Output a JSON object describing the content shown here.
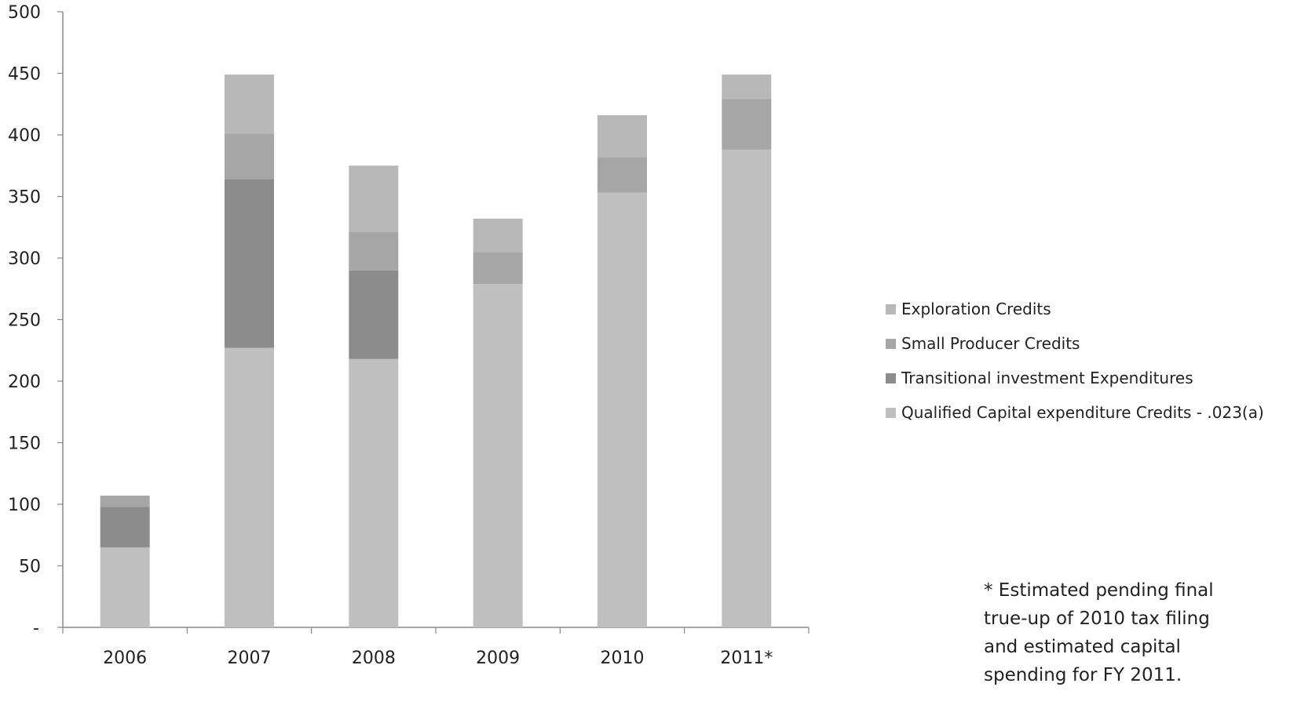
{
  "chart_data": {
    "type": "bar",
    "stacked": true,
    "categories": [
      "2006",
      "2007",
      "2008",
      "2009",
      "2010",
      "2011*"
    ],
    "series": [
      {
        "name": "Qualified Capital expenditure Credits - .023(a)",
        "color": "#bfbfbf",
        "values": [
          65,
          227,
          218,
          279,
          353,
          388
        ]
      },
      {
        "name": "Transitional investment Expenditures",
        "color": "#8c8c8c",
        "values": [
          33,
          137,
          72,
          0,
          0,
          0
        ]
      },
      {
        "name": "Small Producer Credits",
        "color": "#a6a6a6",
        "values": [
          9,
          37,
          31,
          26,
          29,
          41
        ]
      },
      {
        "name": "Exploration Credits",
        "color": "#b8b8b8",
        "values": [
          0,
          48,
          54,
          27,
          34,
          20
        ]
      }
    ],
    "y_ticks": [
      "-",
      "50",
      "100",
      "150",
      "200",
      "250",
      "300",
      "350",
      "400",
      "450",
      "500"
    ],
    "ylim": [
      0,
      500
    ],
    "grid": false,
    "legend_position": "right"
  },
  "legend_order": [
    {
      "label": "Exploration Credits",
      "color": "#b8b8b8"
    },
    {
      "label": "Small Producer Credits",
      "color": "#a6a6a6"
    },
    {
      "label": "Transitional investment Expenditures",
      "color": "#8c8c8c"
    },
    {
      "label": "Qualified Capital expenditure Credits - .023(a)",
      "color": "#bfbfbf"
    }
  ],
  "note": "* Estimated pending final true-up of 2010 tax filing and estimated capital spending for FY 2011."
}
